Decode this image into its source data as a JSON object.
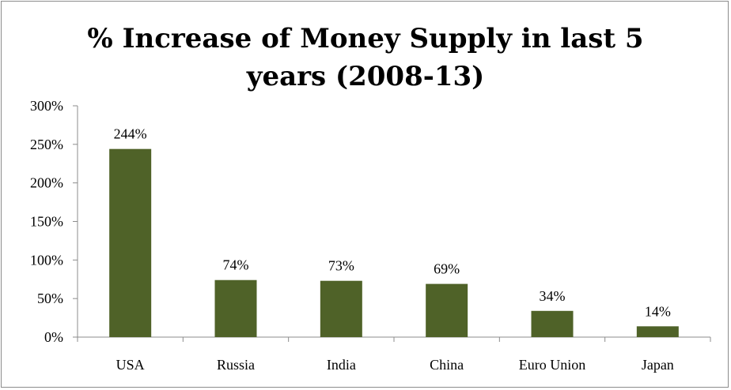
{
  "chart_data": {
    "type": "bar",
    "title_lines": [
      "% Increase of Money Supply in last 5",
      "years (2008-13)"
    ],
    "categories": [
      "USA",
      "Russia",
      "India",
      "China",
      "Euro Union",
      "Japan"
    ],
    "values": [
      244,
      74,
      73,
      69,
      34,
      14
    ],
    "value_labels": [
      "244%",
      "74%",
      "73%",
      "69%",
      "34%",
      "14%"
    ],
    "ylim": [
      0,
      300
    ],
    "yticks": [
      0,
      50,
      100,
      150,
      200,
      250,
      300
    ],
    "ytick_labels": [
      "0%",
      "50%",
      "100%",
      "150%",
      "200%",
      "250%",
      "300%"
    ],
    "xlabel": "",
    "ylabel": "",
    "grid": false,
    "legend": "none",
    "bar_color": "#4f6228",
    "axis_color": "#8c8c8c"
  }
}
